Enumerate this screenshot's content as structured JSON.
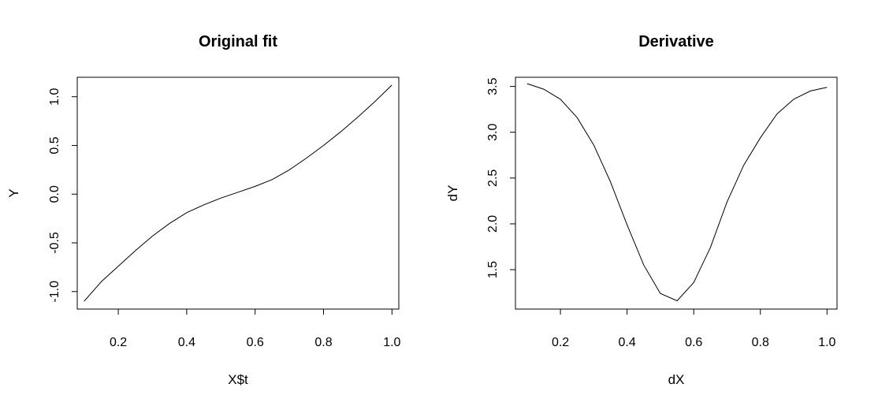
{
  "chart_data": [
    {
      "type": "line",
      "title": "Original fit",
      "xlabel": "X$t",
      "ylabel": "Y",
      "xlim": [
        0.08,
        1.02
      ],
      "ylim": [
        -1.18,
        1.2
      ],
      "x_ticks": [
        0.2,
        0.4,
        0.6,
        0.8,
        1.0
      ],
      "x_tick_labels": [
        "0.2",
        "0.4",
        "0.6",
        "0.8",
        "1.0"
      ],
      "y_ticks": [
        -1.0,
        -0.5,
        0.0,
        0.5,
        1.0
      ],
      "y_tick_labels": [
        "-1.0",
        "-0.5",
        "0.0",
        "0.5",
        "1.0"
      ],
      "grid": false,
      "color": "#000000",
      "series": [
        {
          "x": [
            0.1,
            0.15,
            0.2,
            0.25,
            0.3,
            0.35,
            0.4,
            0.45,
            0.5,
            0.55,
            0.6,
            0.65,
            0.7,
            0.75,
            0.8,
            0.85,
            0.9,
            0.95,
            1.0
          ],
          "y": [
            -1.1,
            -0.9,
            -0.74,
            -0.58,
            -0.43,
            -0.3,
            -0.19,
            -0.11,
            -0.04,
            0.02,
            0.08,
            0.15,
            0.25,
            0.37,
            0.5,
            0.64,
            0.79,
            0.95,
            1.12
          ]
        }
      ]
    },
    {
      "type": "line",
      "title": "Derivative",
      "xlabel": "dX",
      "ylabel": "dY",
      "xlim": [
        0.065,
        1.03
      ],
      "ylim": [
        1.07,
        3.6
      ],
      "x_ticks": [
        0.2,
        0.4,
        0.6,
        0.8,
        1.0
      ],
      "x_tick_labels": [
        "0.2",
        "0.4",
        "0.6",
        "0.8",
        "1.0"
      ],
      "y_ticks": [
        1.5,
        2.0,
        2.5,
        3.0,
        3.5
      ],
      "y_tick_labels": [
        "1.5",
        "2.0",
        "2.5",
        "3.0",
        "3.5"
      ],
      "grid": false,
      "color": "#000000",
      "series": [
        {
          "x": [
            0.1,
            0.15,
            0.2,
            0.25,
            0.3,
            0.35,
            0.4,
            0.45,
            0.5,
            0.55,
            0.6,
            0.65,
            0.7,
            0.75,
            0.8,
            0.85,
            0.9,
            0.95,
            1.0
          ],
          "y": [
            3.53,
            3.47,
            3.36,
            3.16,
            2.86,
            2.46,
            1.99,
            1.55,
            1.24,
            1.16,
            1.36,
            1.74,
            2.24,
            2.64,
            2.94,
            3.2,
            3.36,
            3.45,
            3.49
          ]
        }
      ]
    }
  ]
}
